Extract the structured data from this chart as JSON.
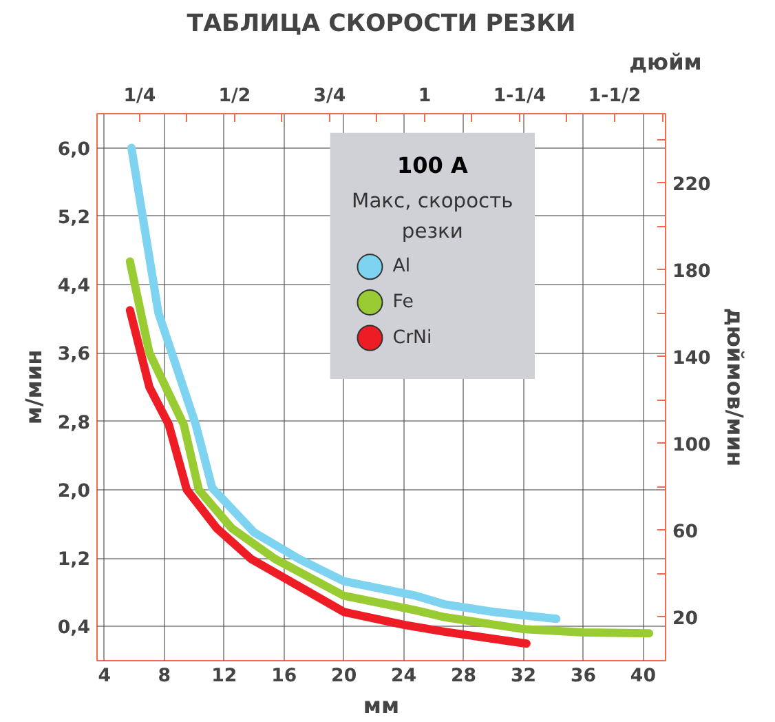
{
  "chart_data": {
    "type": "line",
    "title": "ТАБЛИЦА СКОРОСТИ РЕЗКИ",
    "xlabel": "мм",
    "x2label": "дюйм",
    "ylabel": "м/мин",
    "y2label": "дюймов/мин",
    "legend_title": "100 A",
    "annotations": [
      "Макс, скорость резки"
    ],
    "xlim": [
      3.5,
      41.5
    ],
    "xticks": [
      4,
      8,
      12,
      16,
      20,
      24,
      28,
      32,
      36,
      40
    ],
    "x2lim": [
      0.138,
      1.634
    ],
    "x2ticks": [
      {
        "value": 0.25,
        "label": "1/4"
      },
      {
        "value": 0.375,
        "label": null
      },
      {
        "value": 0.5,
        "label": "1/2"
      },
      {
        "value": 0.625,
        "label": null
      },
      {
        "value": 0.75,
        "label": "3/4"
      },
      {
        "value": 0.875,
        "label": null
      },
      {
        "value": 1,
        "label": "1"
      },
      {
        "value": 1.125,
        "label": null
      },
      {
        "value": 1.25,
        "label": "1-1/4"
      },
      {
        "value": 1.375,
        "label": null
      },
      {
        "value": 1.5,
        "label": "1-1/2"
      },
      {
        "value": 1.625,
        "label": null
      }
    ],
    "ylim": [
      0,
      6.4
    ],
    "yticks": [
      {
        "value": 0.4,
        "label": "0,4"
      },
      {
        "value": 1.2,
        "label": "1,2"
      },
      {
        "value": 2.0,
        "label": "2,0"
      },
      {
        "value": 2.8,
        "label": "2,8"
      },
      {
        "value": 3.6,
        "label": "3,6"
      },
      {
        "value": 4.4,
        "label": "4,4"
      },
      {
        "value": 5.2,
        "label": "5,2"
      },
      {
        "value": 6.0,
        "label": "6,0"
      }
    ],
    "y2lim": [
      0,
      252
    ],
    "y2ticks": [
      {
        "value": 20,
        "label": "20"
      },
      {
        "value": 40,
        "label": null
      },
      {
        "value": 60,
        "label": "60"
      },
      {
        "value": 80,
        "label": null
      },
      {
        "value": 100,
        "label": "100"
      },
      {
        "value": 120,
        "label": null
      },
      {
        "value": 140,
        "label": "140"
      },
      {
        "value": 160,
        "label": null
      },
      {
        "value": 180,
        "label": "180"
      },
      {
        "value": 200,
        "label": null
      },
      {
        "value": 220,
        "label": "220"
      },
      {
        "value": 240,
        "label": null
      }
    ],
    "grid": true,
    "legend": "top right",
    "marker": "none",
    "line_style": "solid",
    "series": [
      {
        "name": "Al",
        "color": "#7dd3f0",
        "x": [
          5.8,
          7.6,
          10.1,
          11.2,
          14,
          17,
          20,
          24.8,
          26.7,
          30,
          34.2
        ],
        "values": [
          6.0,
          4.07,
          2.76,
          2.02,
          1.5,
          1.19,
          0.93,
          0.76,
          0.66,
          0.57,
          0.49
        ]
      },
      {
        "name": "Fe",
        "color": "#99cc33",
        "x": [
          5.7,
          7,
          9.3,
          10.3,
          12.5,
          15.4,
          20,
          24.8,
          26.7,
          32,
          36,
          40.4
        ],
        "values": [
          4.67,
          3.6,
          2.76,
          2.0,
          1.55,
          1.19,
          0.76,
          0.59,
          0.51,
          0.37,
          0.33,
          0.32
        ]
      },
      {
        "name": "CrNi",
        "color": "#ee1c24",
        "x": [
          5.7,
          7,
          8.3,
          9.5,
          11.5,
          13.8,
          20,
          24,
          26.7,
          32.2
        ],
        "values": [
          4.1,
          3.2,
          2.76,
          2.0,
          1.55,
          1.19,
          0.57,
          0.42,
          0.34,
          0.2
        ]
      }
    ]
  }
}
